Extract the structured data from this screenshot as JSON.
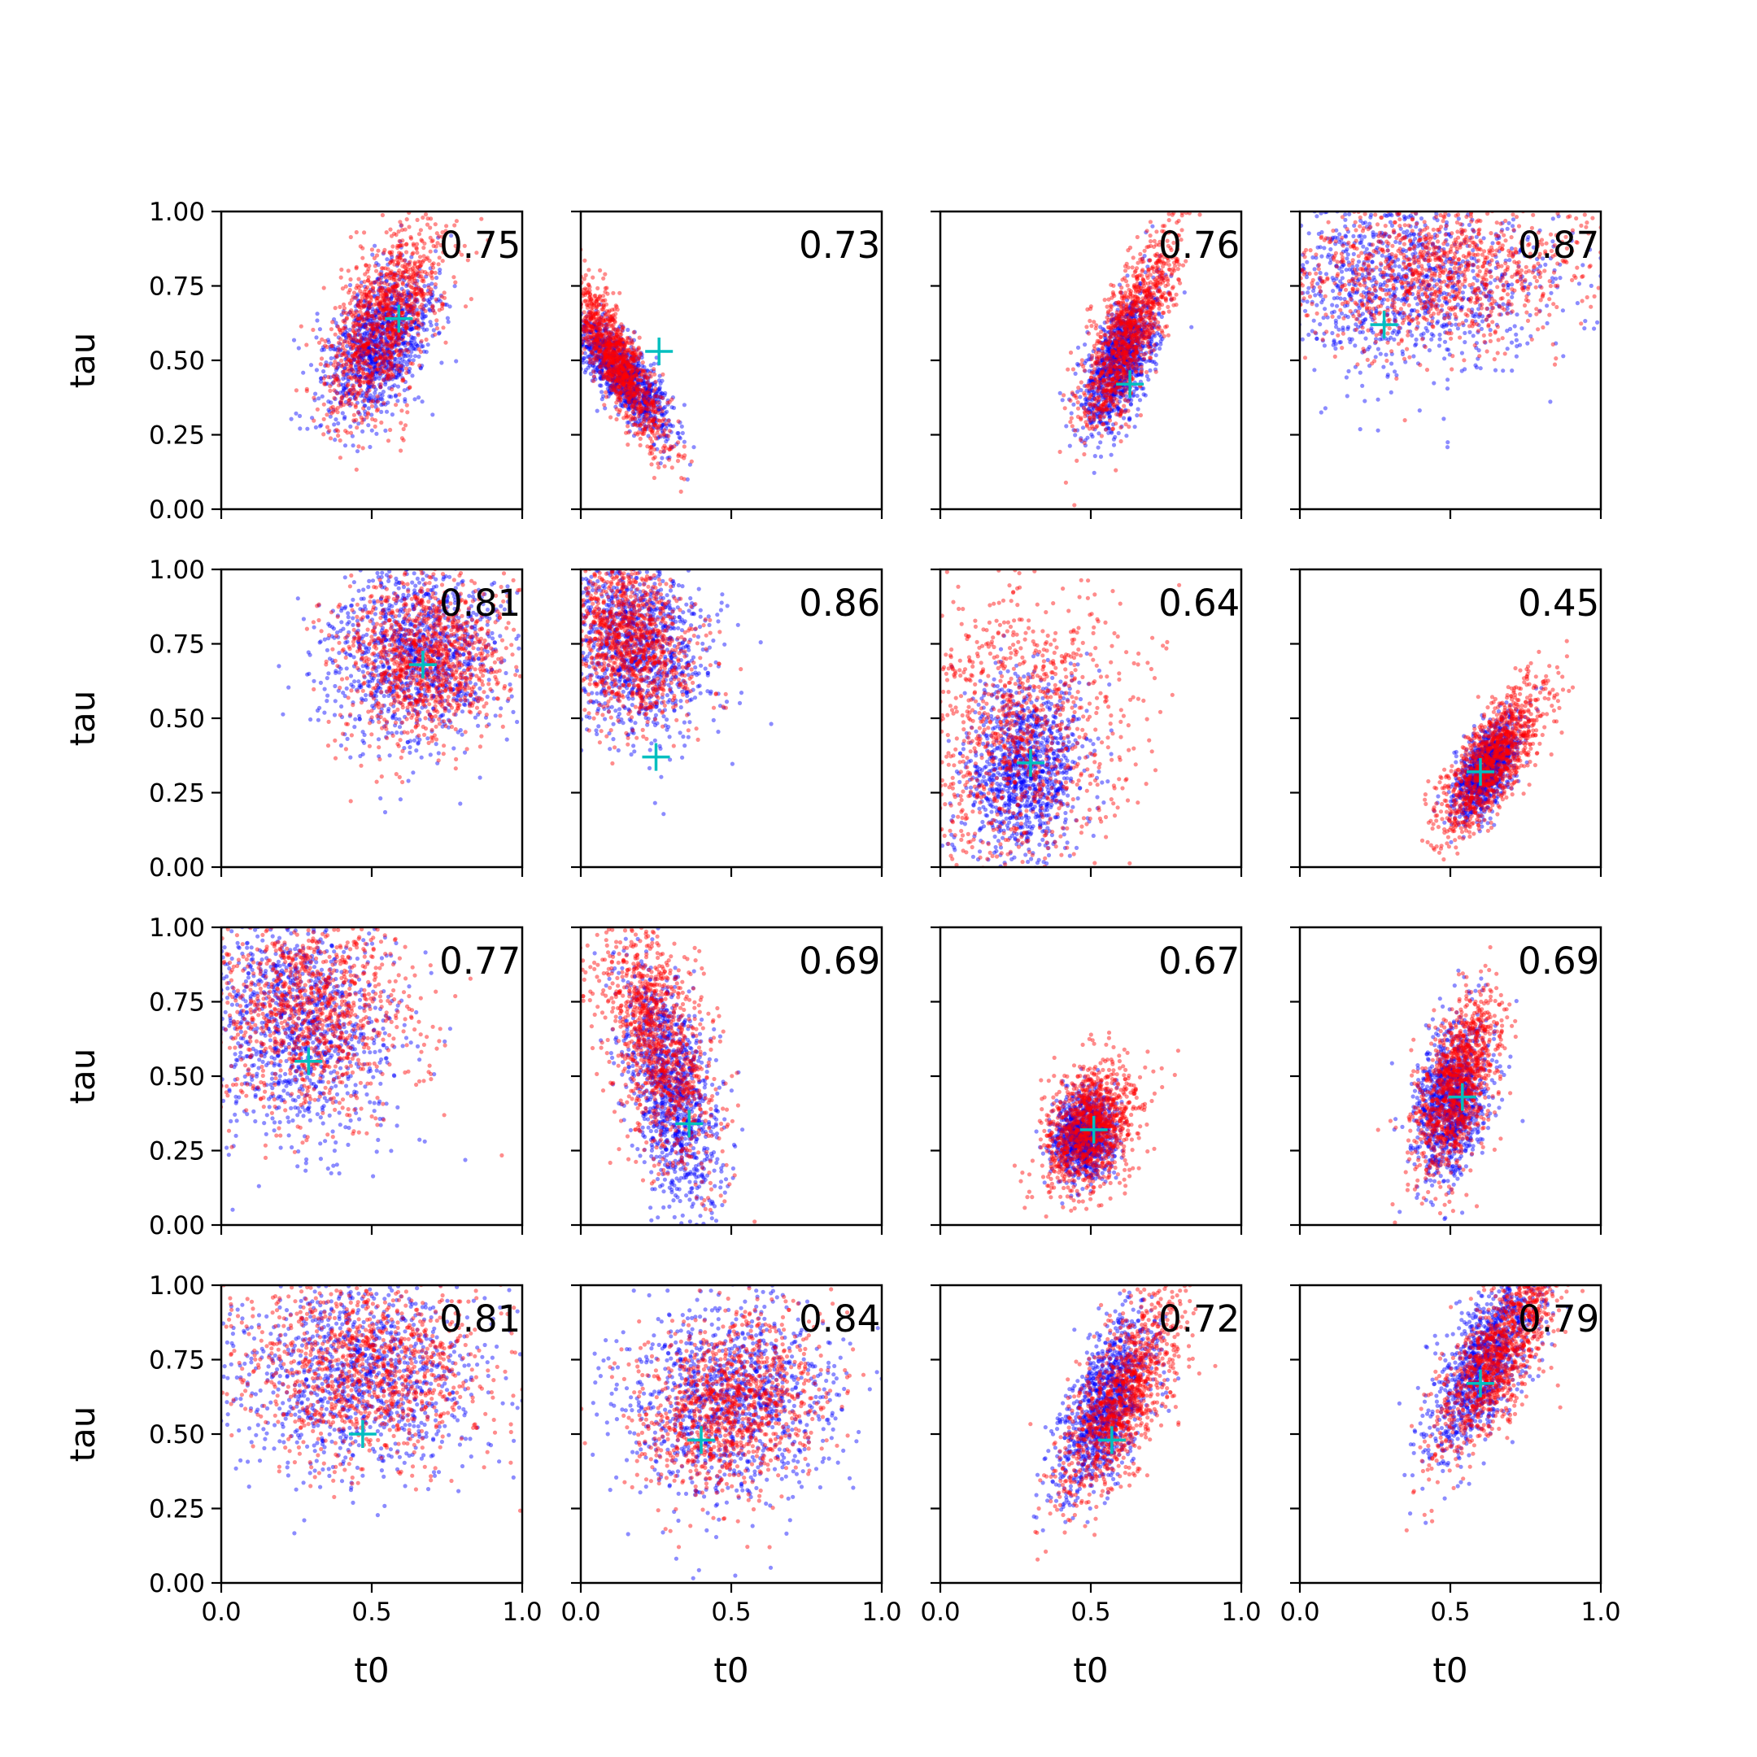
{
  "chart_data": {
    "type": "scatter",
    "layout": "4x4 grid of scatter subplots, shared axes",
    "xlabel": "t0",
    "ylabel": "tau",
    "xlim": [
      0,
      1
    ],
    "ylim": [
      0,
      1
    ],
    "xticks": [
      "0.0",
      "0.5",
      "1.0"
    ],
    "yticks": [
      "0.00",
      "0.25",
      "0.50",
      "0.75",
      "1.00"
    ],
    "grid": false,
    "colors": {
      "series_a": "#0000ff",
      "series_b": "#ff0000",
      "marker": "#00bfbf"
    },
    "panels": [
      {
        "score": "0.75",
        "marker": [
          0.59,
          0.64
        ],
        "blue": {
          "cx": 0.52,
          "cy": 0.55,
          "sx": 0.09,
          "sy": 0.13,
          "rho": 0.45
        },
        "red": {
          "cx": 0.54,
          "cy": 0.64,
          "sx": 0.1,
          "sy": 0.17,
          "rho": 0.55
        }
      },
      {
        "score": "0.73",
        "marker": [
          0.26,
          0.53
        ],
        "blue": {
          "cx": 0.14,
          "cy": 0.45,
          "sx": 0.08,
          "sy": 0.1,
          "rho": -0.8
        },
        "red": {
          "cx": 0.12,
          "cy": 0.5,
          "sx": 0.08,
          "sy": 0.14,
          "rho": -0.85
        }
      },
      {
        "score": "0.76",
        "marker": [
          0.63,
          0.42
        ],
        "blue": {
          "cx": 0.6,
          "cy": 0.5,
          "sx": 0.06,
          "sy": 0.12,
          "rho": 0.6
        },
        "red": {
          "cx": 0.63,
          "cy": 0.6,
          "sx": 0.08,
          "sy": 0.16,
          "rho": 0.75
        }
      },
      {
        "score": "0.87",
        "marker": [
          0.28,
          0.62
        ],
        "blue": {
          "cx": 0.35,
          "cy": 0.78,
          "sx": 0.25,
          "sy": 0.16,
          "rho": 0.0
        },
        "red": {
          "cx": 0.45,
          "cy": 0.8,
          "sx": 0.25,
          "sy": 0.13,
          "rho": 0.1
        }
      },
      {
        "score": "0.81",
        "marker": [
          0.67,
          0.68
        ],
        "blue": {
          "cx": 0.65,
          "cy": 0.72,
          "sx": 0.15,
          "sy": 0.15,
          "rho": 0.0
        },
        "red": {
          "cx": 0.67,
          "cy": 0.7,
          "sx": 0.14,
          "sy": 0.14,
          "rho": 0.0
        }
      },
      {
        "score": "0.86",
        "marker": [
          0.25,
          0.37
        ],
        "blue": {
          "cx": 0.18,
          "cy": 0.75,
          "sx": 0.12,
          "sy": 0.16,
          "rho": -0.2
        },
        "red": {
          "cx": 0.16,
          "cy": 0.77,
          "sx": 0.11,
          "sy": 0.14,
          "rho": -0.2
        }
      },
      {
        "score": "0.64",
        "marker": [
          0.3,
          0.35
        ],
        "blue": {
          "cx": 0.28,
          "cy": 0.33,
          "sx": 0.1,
          "sy": 0.15,
          "rho": 0.1
        },
        "red": {
          "cx": 0.25,
          "cy": 0.45,
          "sx": 0.18,
          "sy": 0.25,
          "rho": 0.1
        }
      },
      {
        "score": "0.45",
        "marker": [
          0.6,
          0.32
        ],
        "blue": {
          "cx": 0.62,
          "cy": 0.33,
          "sx": 0.05,
          "sy": 0.08,
          "rho": 0.6
        },
        "red": {
          "cx": 0.64,
          "cy": 0.36,
          "sx": 0.09,
          "sy": 0.13,
          "rho": 0.75
        }
      },
      {
        "score": "0.77",
        "marker": [
          0.29,
          0.55
        ],
        "blue": {
          "cx": 0.25,
          "cy": 0.68,
          "sx": 0.16,
          "sy": 0.2,
          "rho": -0.1
        },
        "red": {
          "cx": 0.3,
          "cy": 0.72,
          "sx": 0.17,
          "sy": 0.18,
          "rho": 0.0
        }
      },
      {
        "score": "0.69",
        "marker": [
          0.36,
          0.34
        ],
        "blue": {
          "cx": 0.3,
          "cy": 0.45,
          "sx": 0.08,
          "sy": 0.2,
          "rho": -0.5
        },
        "red": {
          "cx": 0.25,
          "cy": 0.62,
          "sx": 0.1,
          "sy": 0.22,
          "rho": -0.55
        }
      },
      {
        "score": "0.67",
        "marker": [
          0.51,
          0.32
        ],
        "blue": {
          "cx": 0.48,
          "cy": 0.3,
          "sx": 0.05,
          "sy": 0.07,
          "rho": 0.1
        },
        "red": {
          "cx": 0.5,
          "cy": 0.32,
          "sx": 0.08,
          "sy": 0.11,
          "rho": 0.3
        }
      },
      {
        "score": "0.69",
        "marker": [
          0.54,
          0.43
        ],
        "blue": {
          "cx": 0.5,
          "cy": 0.42,
          "sx": 0.06,
          "sy": 0.13,
          "rho": 0.3
        },
        "red": {
          "cx": 0.52,
          "cy": 0.47,
          "sx": 0.07,
          "sy": 0.15,
          "rho": 0.5
        }
      },
      {
        "score": "0.81",
        "marker": [
          0.47,
          0.5
        ],
        "blue": {
          "cx": 0.45,
          "cy": 0.7,
          "sx": 0.22,
          "sy": 0.17,
          "rho": 0.0
        },
        "red": {
          "cx": 0.48,
          "cy": 0.72,
          "sx": 0.2,
          "sy": 0.16,
          "rho": 0.0
        }
      },
      {
        "score": "0.84",
        "marker": [
          0.4,
          0.48
        ],
        "blue": {
          "cx": 0.5,
          "cy": 0.62,
          "sx": 0.18,
          "sy": 0.17,
          "rho": 0.1
        },
        "red": {
          "cx": 0.5,
          "cy": 0.6,
          "sx": 0.15,
          "sy": 0.15,
          "rho": 0.2
        }
      },
      {
        "score": "0.72",
        "marker": [
          0.57,
          0.48
        ],
        "blue": {
          "cx": 0.55,
          "cy": 0.6,
          "sx": 0.08,
          "sy": 0.15,
          "rho": 0.6
        },
        "red": {
          "cx": 0.6,
          "cy": 0.62,
          "sx": 0.1,
          "sy": 0.17,
          "rho": 0.7
        }
      },
      {
        "score": "0.79",
        "marker": [
          0.6,
          0.67
        ],
        "blue": {
          "cx": 0.62,
          "cy": 0.75,
          "sx": 0.09,
          "sy": 0.16,
          "rho": 0.7
        },
        "red": {
          "cx": 0.66,
          "cy": 0.76,
          "sx": 0.1,
          "sy": 0.17,
          "rho": 0.75
        }
      }
    ]
  }
}
